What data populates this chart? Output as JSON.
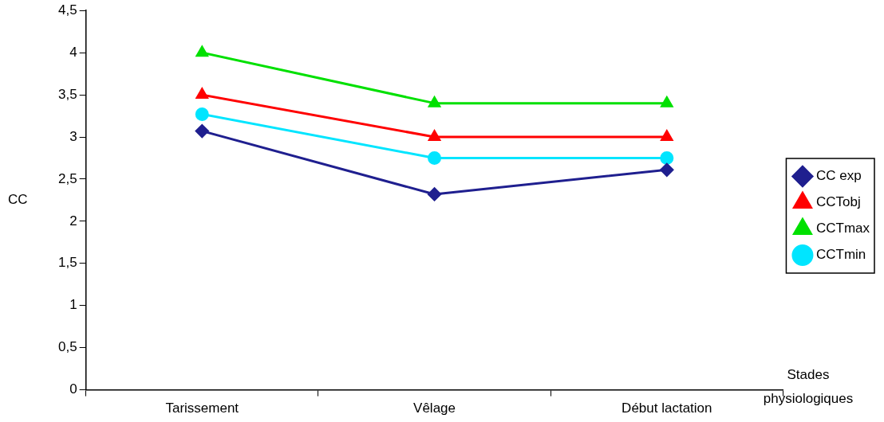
{
  "chart_data": {
    "type": "line",
    "xlabel": "Stades physiologiques",
    "ylabel": "CC",
    "categories": [
      "Tarissement",
      "Vêlage",
      "Début lactation"
    ],
    "series": [
      {
        "name": "CC exp",
        "color": "#1f1f8f",
        "marker": "diamond",
        "values": [
          3.07,
          2.32,
          2.61
        ]
      },
      {
        "name": "CCTobj",
        "color": "#ff0000",
        "marker": "triangle",
        "values": [
          3.5,
          3,
          3
        ]
      },
      {
        "name": "CCTmax",
        "color": "#00e000",
        "marker": "triangle",
        "values": [
          4,
          3.4,
          3.4
        ]
      },
      {
        "name": "CCTmin",
        "color": "#00e5ff",
        "marker": "circle",
        "values": [
          3.27,
          2.75,
          2.75
        ]
      }
    ],
    "ylim": [
      0,
      4.5
    ],
    "yticks": [
      {
        "value": 0,
        "label": "0"
      },
      {
        "value": 0.5,
        "label": "0,5"
      },
      {
        "value": 1,
        "label": "1"
      },
      {
        "value": 1.5,
        "label": "1,5"
      },
      {
        "value": 2,
        "label": "2"
      },
      {
        "value": 2.5,
        "label": "2,5"
      },
      {
        "value": 3,
        "label": "3"
      },
      {
        "value": 3.5,
        "label": "3,5"
      },
      {
        "value": 4,
        "label": "4"
      },
      {
        "value": 4.5,
        "label": "4,5"
      }
    ],
    "grid": false,
    "legend": "right"
  }
}
